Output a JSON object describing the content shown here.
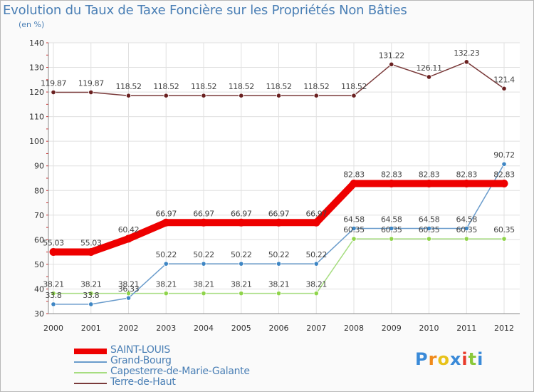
{
  "chart_data": {
    "type": "line",
    "title": "Evolution du Taux de Taxe Foncière sur les Propriétés Non Bâties",
    "ylabel": "(en %)",
    "xlabel": "",
    "ylim": [
      30,
      140
    ],
    "yticks": [
      30,
      40,
      50,
      60,
      70,
      80,
      90,
      100,
      110,
      120,
      130,
      140
    ],
    "categories": [
      "2000",
      "2001",
      "2002",
      "2003",
      "2004",
      "2005",
      "2006",
      "2007",
      "2008",
      "2009",
      "2010",
      "2011",
      "2012"
    ],
    "grid": true,
    "series": [
      {
        "name": "SAINT-LOUIS",
        "color": "#ee0000",
        "marker": "#ee0000",
        "values": [
          55.03,
          55.03,
          60.42,
          66.97,
          66.97,
          66.97,
          66.97,
          66.97,
          82.83,
          82.83,
          82.83,
          82.83,
          82.83
        ],
        "labels": [
          "55.03",
          "55.03",
          "60.42",
          "66.97",
          "66.97",
          "66.97",
          "66.97",
          "66.97",
          "82.83",
          "82.83",
          "82.83",
          "82.83",
          "82.83"
        ]
      },
      {
        "name": "Grand-Bourg",
        "color": "#6a9ccc",
        "marker": "#3e86c4",
        "values": [
          33.8,
          33.8,
          36.33,
          50.22,
          50.22,
          50.22,
          50.22,
          50.22,
          64.58,
          64.58,
          64.58,
          64.58,
          90.72
        ],
        "labels": [
          "33.8",
          "33.8",
          "36.33",
          "50.22",
          "50.22",
          "50.22",
          "50.22",
          "50.22",
          "64.58",
          "64.58",
          "64.58",
          "64.58",
          "90.72"
        ]
      },
      {
        "name": "Capesterre-de-Marie-Galante",
        "color": "#a6dd80",
        "marker": "#8fd44a",
        "values": [
          38.21,
          38.21,
          38.21,
          38.21,
          38.21,
          38.21,
          38.21,
          38.21,
          60.35,
          60.35,
          60.35,
          60.35,
          60.35
        ],
        "labels": [
          "38.21",
          "38.21",
          "38.21",
          "38.21",
          "38.21",
          "38.21",
          "38.21",
          "38.21",
          "60.35",
          "60.35",
          "60.35",
          "60.35",
          "60.35"
        ]
      },
      {
        "name": "Terre-de-Haut",
        "color": "#7a3a3a",
        "marker": "#6a2020",
        "values": [
          119.87,
          119.87,
          118.52,
          118.52,
          118.52,
          118.52,
          118.52,
          118.52,
          118.52,
          131.22,
          126.11,
          132.23,
          121.4
        ],
        "labels": [
          "119.87",
          "119.87",
          "118.52",
          "118.52",
          "118.52",
          "118.52",
          "118.52",
          "118.52",
          "118.52",
          "131.22",
          "126.11",
          "132.23",
          "121.4"
        ]
      }
    ]
  },
  "logo": {
    "letters": [
      "P",
      "r",
      "o",
      "x",
      "i",
      "t",
      "i"
    ],
    "colors": [
      "#3a8ad8",
      "#f08a1a",
      "#e8c21a",
      "#3a8ad8",
      "#e83a2a",
      "#8ac83a",
      "#3a8ad8"
    ]
  }
}
